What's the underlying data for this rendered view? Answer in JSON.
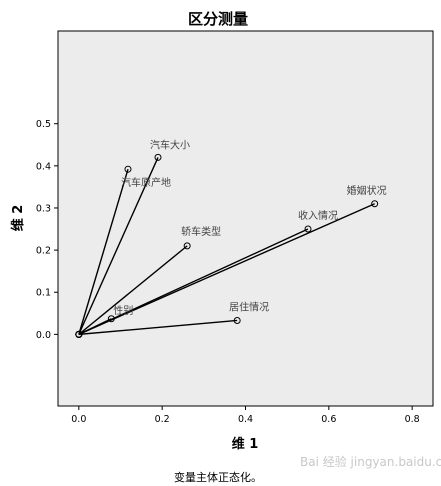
{
  "chart_data": {
    "type": "scatter",
    "title": "区分测量",
    "xlabel": "维 1",
    "ylabel": "维 2",
    "xlim": [
      -0.05,
      0.85
    ],
    "ylim": [
      -0.17,
      0.72
    ],
    "xticks": [
      "0.0",
      "0.2",
      "0.4",
      "0.6",
      "0.8"
    ],
    "xtick_values": [
      0.0,
      0.2,
      0.4,
      0.6,
      0.8
    ],
    "yticks": [
      "0.0",
      "0.1",
      "0.2",
      "0.3",
      "0.4",
      "0.5"
    ],
    "ytick_values": [
      0.0,
      0.1,
      0.2,
      0.3,
      0.4,
      0.5
    ],
    "grid": false,
    "origin": [
      0.0,
      0.0
    ],
    "points": [
      {
        "label": "汽车大小",
        "x": 0.19,
        "y": 0.42
      },
      {
        "label": "汽车原产地",
        "x": 0.118,
        "y": 0.392
      },
      {
        "label": "轿车类型",
        "x": 0.26,
        "y": 0.21
      },
      {
        "label": "婚姻状况",
        "x": 0.71,
        "y": 0.31
      },
      {
        "label": "收入情况",
        "x": 0.55,
        "y": 0.25
      },
      {
        "label": "性别",
        "x": 0.078,
        "y": 0.037
      },
      {
        "label": "居住情况",
        "x": 0.38,
        "y": 0.033
      }
    ],
    "footnote": "变量主体正态化。"
  },
  "colors": {
    "plot_background": "#ececec",
    "axis": "#000000",
    "vector": "#000000"
  },
  "watermark": "Bai 经验 jingyan.baidu.com"
}
